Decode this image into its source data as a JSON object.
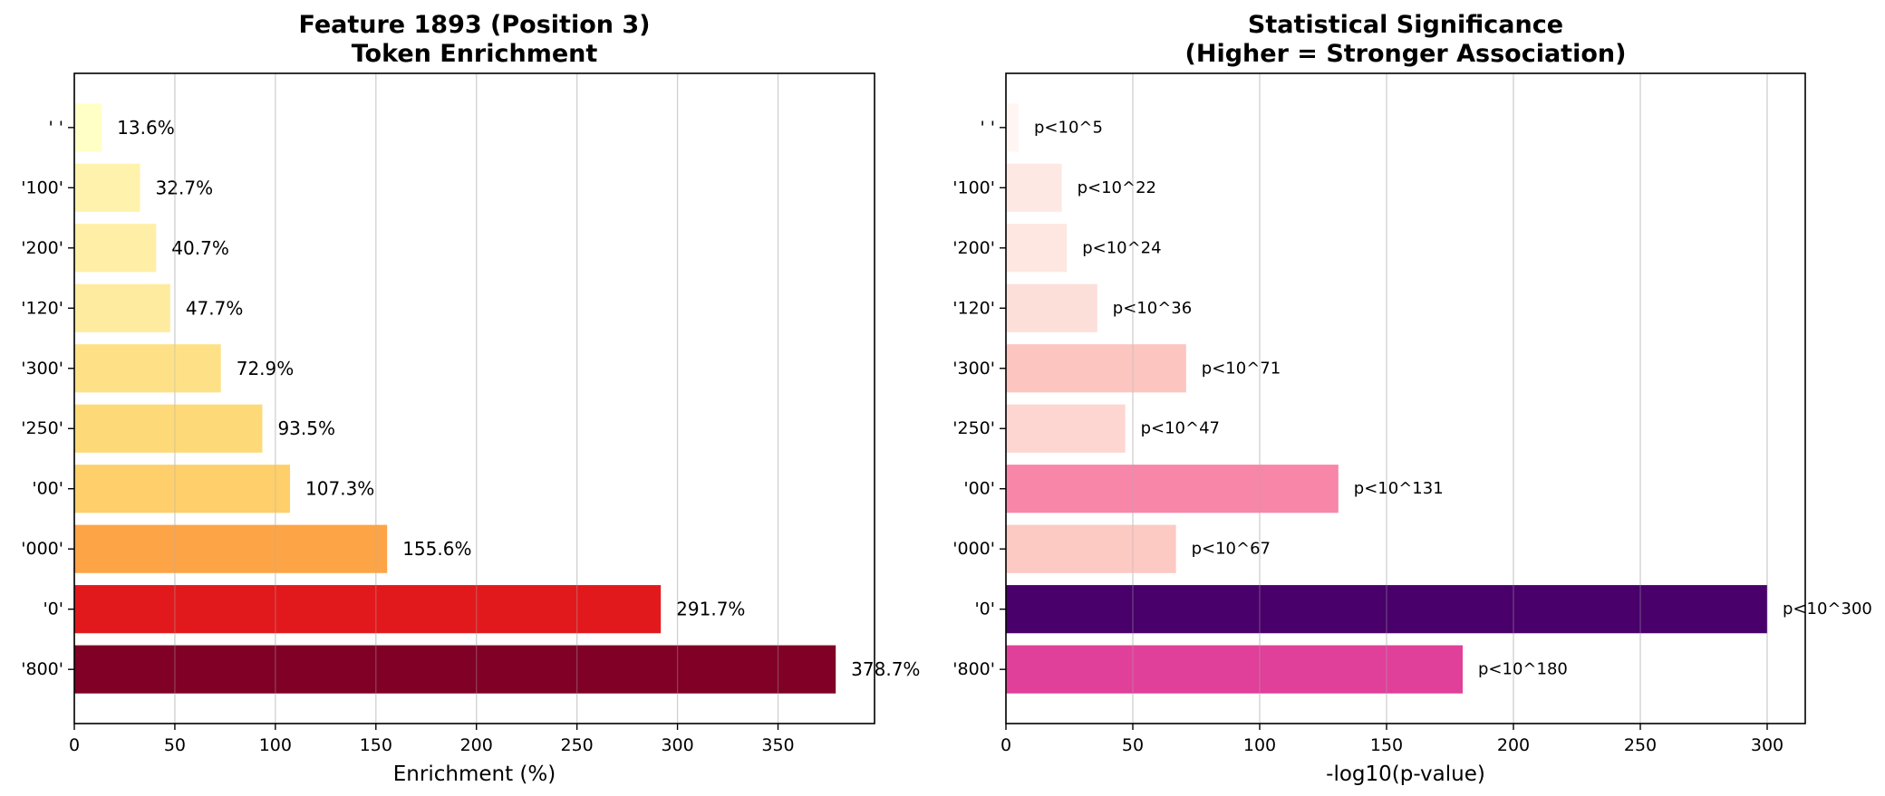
{
  "chart_data": [
    {
      "type": "bar",
      "orientation": "horizontal",
      "title": "Feature 1893 (Position 3)\nToken Enrichment",
      "xlabel": "Enrichment (%)",
      "ylabel": "",
      "xlim": [
        0,
        398
      ],
      "xticks": [
        0,
        50,
        100,
        150,
        200,
        250,
        300,
        350
      ],
      "grid": "x",
      "categories": [
        "' '",
        "'100'",
        "'200'",
        "'120'",
        "'300'",
        "'250'",
        "'00'",
        "'000'",
        "'0'",
        "'800'"
      ],
      "values": [
        13.6,
        32.7,
        40.7,
        47.7,
        72.9,
        93.5,
        107.3,
        155.6,
        291.7,
        378.7
      ],
      "data_labels": [
        "13.6%",
        "32.7%",
        "40.7%",
        "47.7%",
        "72.9%",
        "93.5%",
        "107.3%",
        "155.6%",
        "291.7%",
        "378.7%"
      ],
      "colors": [
        "#ffffc6",
        "#fff2ad",
        "#ffeea5",
        "#ffeb9f",
        "#fee187",
        "#fed977",
        "#fecf6a",
        "#fda446",
        "#e2191c",
        "#800026"
      ]
    },
    {
      "type": "bar",
      "orientation": "horizontal",
      "title": "Statistical Significance\n(Higher = Stronger Association)",
      "xlabel": "-log10(p-value)",
      "ylabel": "",
      "xlim": [
        0,
        315
      ],
      "xticks": [
        0,
        50,
        100,
        150,
        200,
        250,
        300
      ],
      "grid": "x",
      "categories": [
        "' '",
        "'100'",
        "'200'",
        "'120'",
        "'300'",
        "'250'",
        "'00'",
        "'000'",
        "'0'",
        "'800'"
      ],
      "values": [
        5,
        22,
        24,
        36,
        71,
        47,
        131,
        67,
        300,
        180
      ],
      "data_labels": [
        "p<10^5",
        "p<10^22",
        "p<10^24",
        "p<10^36",
        "p<10^71",
        "p<10^47",
        "p<10^131",
        "p<10^67",
        "p<10^300",
        "p<10^180"
      ],
      "colors": [
        "#fff5f2",
        "#fee8e3",
        "#fee6e1",
        "#fddfda",
        "#fcc5c0",
        "#fdd6d1",
        "#f786a9",
        "#fcc9c3",
        "#49006a",
        "#e0409a"
      ]
    }
  ]
}
